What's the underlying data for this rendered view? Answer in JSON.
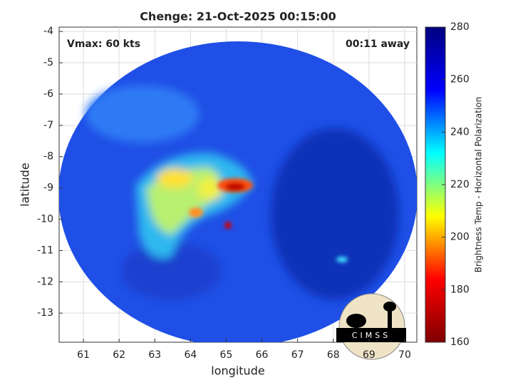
{
  "chart_data": {
    "type": "heatmap",
    "title": "Chenge: 21-Oct-2025 00:15:00",
    "xlabel": "longitude",
    "ylabel": "latitude",
    "annotations": [
      "Vmax: 60 kts",
      "00:11 away"
    ],
    "logo_text": "CIMSS",
    "xlim": [
      60.32,
      70.34
    ],
    "xticks": [
      61,
      62,
      63,
      64,
      65,
      66,
      67,
      68,
      69,
      70
    ],
    "ylim": [
      -13.93,
      -3.86
    ],
    "yticks": [
      -13,
      -12,
      -11,
      -10,
      -9,
      -8,
      -7,
      -6,
      -5,
      -4
    ],
    "grid": true,
    "colorbar": {
      "label": "Brightness Temp - Horizontal Polarization",
      "lim": [
        160,
        280
      ],
      "ticks": [
        160,
        180,
        200,
        220,
        240,
        260,
        280
      ],
      "colormap": [
        "#7f0000",
        "#ff0000",
        "#ffff00",
        "#00ffff",
        "#0000ff",
        "#00007f"
      ]
    }
  }
}
